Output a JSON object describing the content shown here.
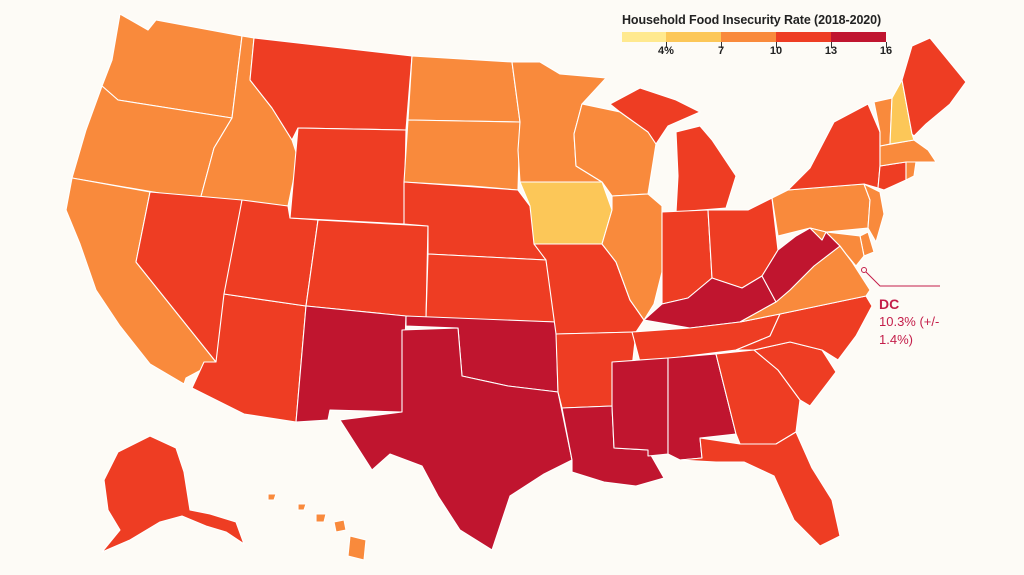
{
  "legend": {
    "title": "Household Food Insecurity Rate (2018-2020)",
    "ticks": [
      "4%",
      "7",
      "10",
      "13",
      "16"
    ],
    "colors": [
      "#ffe98f",
      "#fcc758",
      "#f98a3c",
      "#ee3d23",
      "#c0152f"
    ]
  },
  "callout": {
    "state": "DC",
    "value": "10.3% (+/- 1.4%)",
    "color": "#c41e4a"
  },
  "states": {
    "WA": "#f98a3c",
    "OR": "#f98a3c",
    "CA": "#f98a3c",
    "ID": "#f98a3c",
    "NV": "#ee3d23",
    "AZ": "#ee3d23",
    "UT": "#ee3d23",
    "MT": "#ee3d23",
    "WY": "#ee3d23",
    "CO": "#ee3d23",
    "NM": "#c0152f",
    "ND": "#f98a3c",
    "SD": "#f98a3c",
    "NE": "#ee3d23",
    "KS": "#ee3d23",
    "OK": "#c0152f",
    "TX": "#c0152f",
    "MN": "#f98a3c",
    "IA": "#fcc758",
    "MO": "#ee3d23",
    "AR": "#ee3d23",
    "LA": "#c0152f",
    "WI": "#f98a3c",
    "IL": "#f98a3c",
    "MI": "#ee3d23",
    "IN": "#ee3d23",
    "OH": "#ee3d23",
    "KY": "#c0152f",
    "TN": "#ee3d23",
    "MS": "#c0152f",
    "AL": "#c0152f",
    "GA": "#ee3d23",
    "FL": "#ee3d23",
    "SC": "#ee3d23",
    "NC": "#ee3d23",
    "VA": "#f98a3c",
    "WV": "#c0152f",
    "PA": "#f98a3c",
    "NY": "#ee3d23",
    "ME": "#ee3d23",
    "VT": "#f98a3c",
    "NH": "#fcc758",
    "MA": "#f98a3c",
    "CT": "#ee3d23",
    "RI": "#f98a3c",
    "NJ": "#f98a3c",
    "DE": "#f98a3c",
    "MD": "#f98a3c",
    "AK": "#ee3d23",
    "HI": "#f98a3c"
  }
}
